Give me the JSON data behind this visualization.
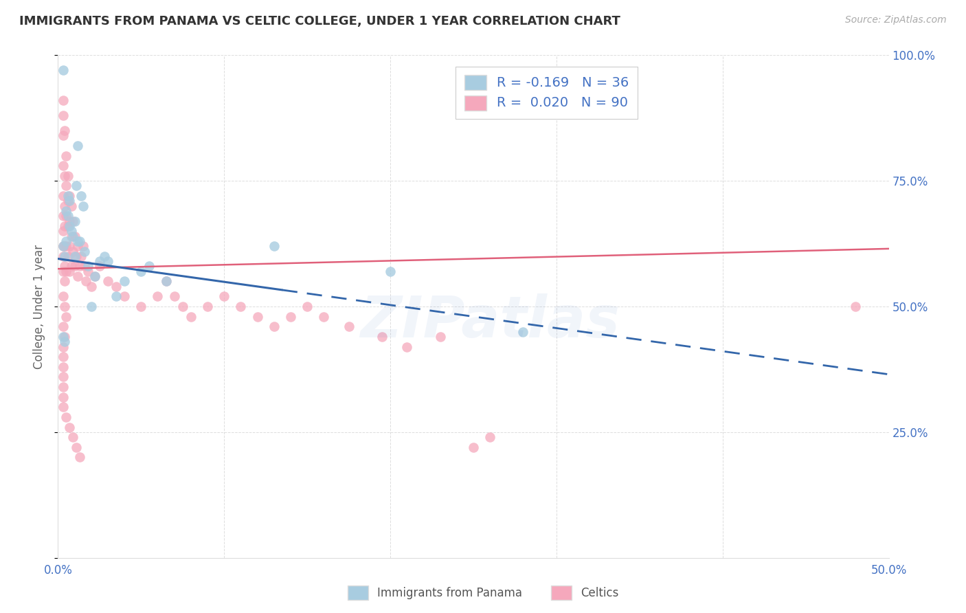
{
  "title": "IMMIGRANTS FROM PANAMA VS CELTIC COLLEGE, UNDER 1 YEAR CORRELATION CHART",
  "source": "Source: ZipAtlas.com",
  "ylabel": "College, Under 1 year",
  "xmin": 0.0,
  "xmax": 0.5,
  "ymin": 0.0,
  "ymax": 1.0,
  "legend_label1": "R = -0.169   N = 36",
  "legend_label2": "R =  0.020   N = 90",
  "legend_bottom_label1": "Immigrants from Panama",
  "legend_bottom_label2": "Celtics",
  "color_blue": "#a8cce0",
  "color_pink": "#f5a8bc",
  "color_blue_line": "#3366aa",
  "color_pink_line": "#e0607a",
  "watermark": "ZIPatlas",
  "title_color": "#333333",
  "axis_color": "#4472c4",
  "grid_color": "#dddddd",
  "background_color": "#ffffff",
  "blue_line_x0": 0.0,
  "blue_line_y0": 0.595,
  "blue_line_x1": 0.5,
  "blue_line_y1": 0.365,
  "blue_line_solid_end": 0.135,
  "pink_line_x0": 0.0,
  "pink_line_y0": 0.575,
  "pink_line_x1": 0.5,
  "pink_line_y1": 0.615,
  "blue_x": [
    0.003,
    0.003,
    0.004,
    0.005,
    0.005,
    0.006,
    0.006,
    0.007,
    0.007,
    0.008,
    0.009,
    0.01,
    0.01,
    0.011,
    0.012,
    0.012,
    0.013,
    0.014,
    0.015,
    0.016,
    0.018,
    0.02,
    0.022,
    0.025,
    0.028,
    0.03,
    0.035,
    0.04,
    0.05,
    0.055,
    0.065,
    0.13,
    0.2,
    0.28,
    0.003,
    0.004
  ],
  "blue_y": [
    0.97,
    0.62,
    0.6,
    0.69,
    0.63,
    0.72,
    0.68,
    0.66,
    0.71,
    0.65,
    0.64,
    0.6,
    0.67,
    0.74,
    0.82,
    0.63,
    0.63,
    0.72,
    0.7,
    0.61,
    0.58,
    0.5,
    0.56,
    0.59,
    0.6,
    0.59,
    0.52,
    0.55,
    0.57,
    0.58,
    0.55,
    0.62,
    0.57,
    0.45,
    0.44,
    0.43
  ],
  "pink_x": [
    0.003,
    0.003,
    0.003,
    0.003,
    0.003,
    0.003,
    0.003,
    0.003,
    0.003,
    0.003,
    0.004,
    0.004,
    0.004,
    0.004,
    0.004,
    0.004,
    0.004,
    0.005,
    0.005,
    0.005,
    0.005,
    0.005,
    0.006,
    0.006,
    0.006,
    0.006,
    0.007,
    0.007,
    0.007,
    0.007,
    0.008,
    0.008,
    0.008,
    0.009,
    0.009,
    0.01,
    0.01,
    0.011,
    0.012,
    0.012,
    0.013,
    0.014,
    0.015,
    0.016,
    0.017,
    0.018,
    0.02,
    0.022,
    0.025,
    0.03,
    0.035,
    0.04,
    0.05,
    0.06,
    0.065,
    0.07,
    0.075,
    0.08,
    0.09,
    0.1,
    0.11,
    0.12,
    0.13,
    0.14,
    0.15,
    0.16,
    0.175,
    0.195,
    0.21,
    0.23,
    0.25,
    0.26,
    0.003,
    0.004,
    0.005,
    0.003,
    0.004,
    0.003,
    0.003,
    0.003,
    0.003,
    0.003,
    0.003,
    0.003,
    0.005,
    0.007,
    0.009,
    0.011,
    0.013,
    0.48
  ],
  "pink_y": [
    0.91,
    0.88,
    0.84,
    0.78,
    0.72,
    0.68,
    0.65,
    0.62,
    0.6,
    0.57,
    0.85,
    0.76,
    0.7,
    0.66,
    0.62,
    0.58,
    0.55,
    0.8,
    0.74,
    0.68,
    0.62,
    0.57,
    0.76,
    0.71,
    0.66,
    0.6,
    0.72,
    0.67,
    0.62,
    0.57,
    0.7,
    0.64,
    0.58,
    0.67,
    0.61,
    0.64,
    0.58,
    0.6,
    0.62,
    0.56,
    0.58,
    0.6,
    0.62,
    0.58,
    0.55,
    0.57,
    0.54,
    0.56,
    0.58,
    0.55,
    0.54,
    0.52,
    0.5,
    0.52,
    0.55,
    0.52,
    0.5,
    0.48,
    0.5,
    0.52,
    0.5,
    0.48,
    0.46,
    0.48,
    0.5,
    0.48,
    0.46,
    0.44,
    0.42,
    0.44,
    0.22,
    0.24,
    0.52,
    0.5,
    0.48,
    0.46,
    0.44,
    0.42,
    0.4,
    0.38,
    0.36,
    0.34,
    0.32,
    0.3,
    0.28,
    0.26,
    0.24,
    0.22,
    0.2,
    0.5
  ]
}
